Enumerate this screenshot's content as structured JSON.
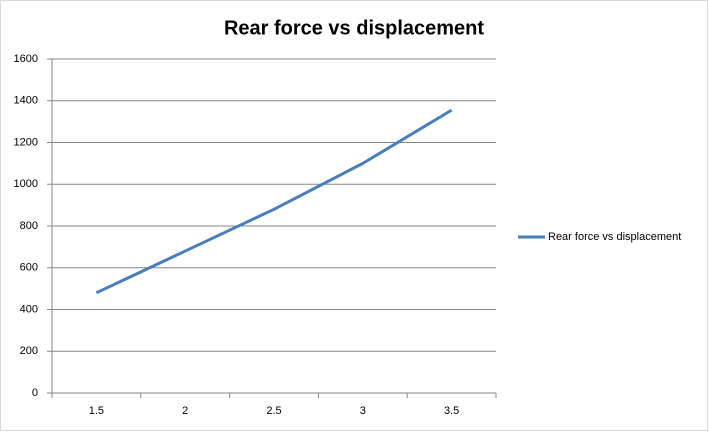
{
  "chart_data": {
    "type": "line",
    "title": "Rear force vs displacement",
    "categories": [
      "1.5",
      "2",
      "2.5",
      "3",
      "3.5"
    ],
    "series": [
      {
        "name": "Rear force vs displacement",
        "color": "#4a7ebb",
        "values": [
          480,
          680,
          880,
          1100,
          1355
        ]
      }
    ],
    "ylim": [
      0,
      1600
    ],
    "yticks": [
      0,
      200,
      400,
      600,
      800,
      1000,
      1200,
      1400,
      1600
    ],
    "grid": true,
    "legend": "right"
  }
}
